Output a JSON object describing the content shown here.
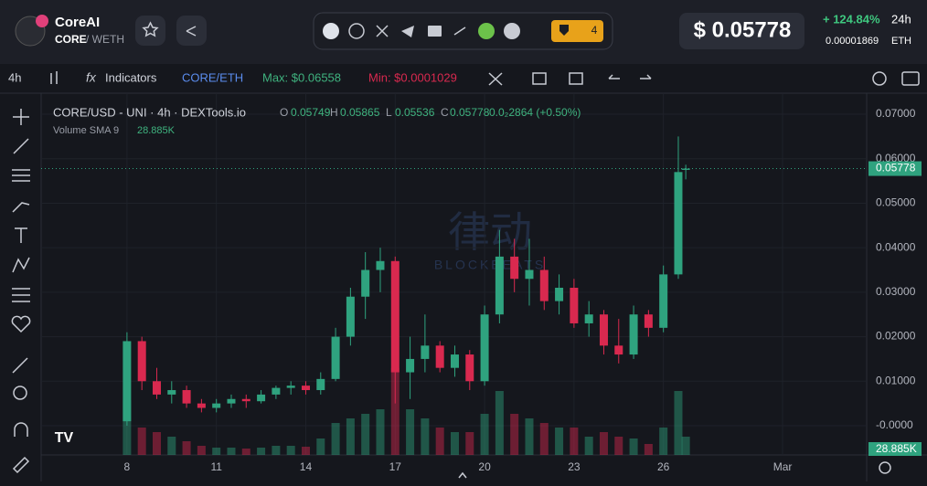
{
  "header": {
    "name": "CoreAI",
    "base": "CORE",
    "quote": "/ WETH",
    "badge_count": "4",
    "price": "$ 0.05778",
    "change": "+ 124.84%",
    "period": "24h",
    "eth_price": "0.00001869",
    "eth_unit": "ETH"
  },
  "toolbar": {
    "interval": "4h",
    "indicators": "Indicators",
    "pair": "CORE/ETH",
    "max": "Max: $0.06558",
    "min": "Min: $0.0001029"
  },
  "legend": {
    "title": "CORE/USD - UNI · 4h · DEXTools.io",
    "o_label": "O",
    "o": "0.05749",
    "h_label": "H",
    "h": "0.05865",
    "l_label": "L",
    "l": "0.05536",
    "c_label": "C",
    "c": "0.05778",
    "change": "0.0₂2864 (+0.50%)",
    "volume_title": "Volume SMA 9",
    "volume_value": "28.885K"
  },
  "watermark": {
    "cn": "律动",
    "en": "BLOCKBEATS"
  },
  "chart_data": {
    "type": "candlestick",
    "up_color": "#2fa37f",
    "down_color": "#d9294f",
    "x": [
      8,
      8.5,
      9,
      9.5,
      10,
      10.5,
      11,
      11.5,
      12,
      12.5,
      13,
      13.5,
      14,
      14.5,
      15,
      15.5,
      16,
      16.5,
      17,
      17.5,
      18,
      18.5,
      19,
      19.5,
      20,
      20.5,
      21,
      21.5,
      22,
      22.5,
      23,
      23.5,
      24,
      24.5,
      25,
      25.5,
      26,
      26.5,
      26.75
    ],
    "open": [
      0.001,
      0.019,
      0.01,
      0.007,
      0.008,
      0.005,
      0.004,
      0.005,
      0.006,
      0.0055,
      0.007,
      0.0085,
      0.009,
      0.008,
      0.0105,
      0.02,
      0.029,
      0.035,
      0.037,
      0.012,
      0.015,
      0.018,
      0.013,
      0.016,
      0.01,
      0.025,
      0.038,
      0.033,
      0.035,
      0.028,
      0.031,
      0.023,
      0.025,
      0.018,
      0.016,
      0.025,
      0.022,
      0.034,
      0.05749
    ],
    "high": [
      0.021,
      0.02,
      0.013,
      0.01,
      0.009,
      0.006,
      0.006,
      0.007,
      0.007,
      0.008,
      0.009,
      0.01,
      0.01,
      0.012,
      0.022,
      0.031,
      0.039,
      0.04,
      0.038,
      0.02,
      0.025,
      0.019,
      0.018,
      0.017,
      0.027,
      0.044,
      0.042,
      0.042,
      0.038,
      0.034,
      0.033,
      0.028,
      0.026,
      0.024,
      0.027,
      0.026,
      0.036,
      0.065,
      0.05865
    ],
    "low": [
      0.0,
      0.008,
      0.006,
      0.005,
      0.004,
      0.003,
      0.003,
      0.004,
      0.004,
      0.005,
      0.006,
      0.007,
      0.007,
      0.007,
      0.01,
      0.018,
      0.024,
      0.03,
      0.005,
      0.006,
      0.012,
      0.012,
      0.011,
      0.008,
      0.009,
      0.023,
      0.03,
      0.027,
      0.026,
      0.025,
      0.022,
      0.02,
      0.016,
      0.014,
      0.015,
      0.02,
      0.021,
      0.033,
      0.05536
    ],
    "close": [
      0.019,
      0.01,
      0.007,
      0.008,
      0.005,
      0.004,
      0.005,
      0.006,
      0.0055,
      0.007,
      0.0085,
      0.009,
      0.008,
      0.0105,
      0.02,
      0.029,
      0.035,
      0.037,
      0.012,
      0.015,
      0.018,
      0.013,
      0.016,
      0.01,
      0.025,
      0.038,
      0.033,
      0.035,
      0.028,
      0.031,
      0.023,
      0.025,
      0.018,
      0.016,
      0.025,
      0.022,
      0.034,
      0.057,
      0.05778
    ],
    "volume": [
      60,
      30,
      25,
      20,
      15,
      10,
      8,
      8,
      7,
      8,
      10,
      10,
      9,
      18,
      35,
      40,
      45,
      50,
      95,
      50,
      40,
      30,
      25,
      25,
      45,
      70,
      45,
      40,
      35,
      30,
      30,
      20,
      25,
      20,
      18,
      12,
      30,
      70,
      20
    ],
    "xlim": [
      5.12,
      32.82
    ],
    "xticks": [
      8,
      11,
      14,
      17,
      20,
      23,
      26,
      {
        "value": 30,
        "label": "Mar"
      }
    ],
    "ylim": [
      -0.00657,
      0.07452
    ],
    "yticks": [
      {
        "value": 0.07,
        "label": "0.07000"
      },
      {
        "value": 0.06,
        "label": "0.06000"
      },
      {
        "value": 0.05,
        "label": "0.05000"
      },
      {
        "value": 0.04,
        "label": "0.04000"
      },
      {
        "value": 0.03,
        "label": "0.03000"
      },
      {
        "value": 0.02,
        "label": "0.02000"
      },
      {
        "value": 0.01,
        "label": "0.01000"
      },
      {
        "value": 0,
        "label": "-0.0000"
      }
    ],
    "last_price": 0.05778,
    "volume_label": "28.885K",
    "grid": true
  }
}
